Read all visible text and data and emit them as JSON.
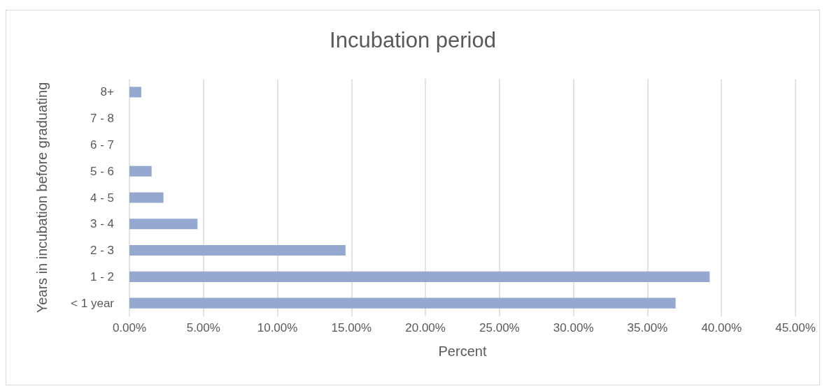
{
  "chart_data": {
    "type": "bar",
    "orientation": "horizontal",
    "title": "Incubation period",
    "xlabel": "Percent",
    "ylabel": "Years in incubation before graduating",
    "categories": [
      "8+",
      "7 - 8",
      "6 - 7",
      "5 - 6",
      "4 - 5",
      "3 - 4",
      "2 - 3",
      "1 - 2",
      "< 1 year"
    ],
    "values": [
      0.8,
      0,
      0,
      1.5,
      2.3,
      4.6,
      14.6,
      39.2,
      36.9
    ],
    "color": "#95a9d0",
    "xlim": [
      0,
      45
    ],
    "xticks": [
      {
        "value": 0,
        "label": "0.00%"
      },
      {
        "value": 5,
        "label": "5.00%"
      },
      {
        "value": 10,
        "label": "10.00%"
      },
      {
        "value": 15,
        "label": "15.00%"
      },
      {
        "value": 20,
        "label": "20.00%"
      },
      {
        "value": 25,
        "label": "25.00%"
      },
      {
        "value": 30,
        "label": "30.00%"
      },
      {
        "value": 35,
        "label": "35.00%"
      },
      {
        "value": 40,
        "label": "40.00%"
      },
      {
        "value": 45,
        "label": "45.00%"
      }
    ],
    "grid": "x"
  }
}
